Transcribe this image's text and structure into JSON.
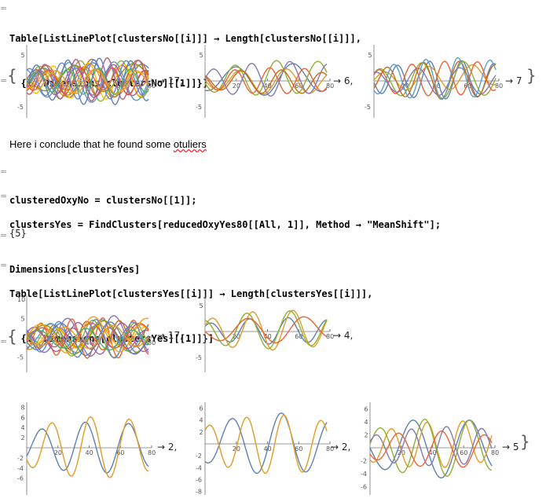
{
  "cells": {
    "in1": {
      "line1": "Table[ListLinePlot[clustersNo[[i]]] → Length[clustersNo[[i]]],",
      "line2": "  {i, Dimensions[clustersNo][[1]]}]"
    },
    "out1": {
      "labels": [
        "→ 17,",
        "→ 6,",
        "→ 7"
      ]
    },
    "note": {
      "prefix": "Here i conclude that he found some ",
      "misspelled": "otuliers"
    },
    "in2": {
      "line1": "clusteredOxyNo = clustersNo[[1]];"
    },
    "in3": {
      "line1": "clustersYes = FindClusters[reducedOxyYes80[[All, 1]], Method → \"MeanShift\"];",
      "line2": "Dimensions[clustersYes]"
    },
    "out3": {
      "value": "{5}"
    },
    "in4": {
      "line1": "Table[ListLinePlot[clustersYes[[i]]] → Length[clustersYes[[i]]],",
      "line2": "  {i, Dimensions[clustersYes][[1]]}]"
    },
    "out4": {
      "labels": [
        "→ 17,",
        "→ 4,",
        "→ 2,",
        "→ 2,",
        "→ 5"
      ]
    }
  },
  "plots": [
    {
      "id": "p1",
      "count": 17,
      "yticks": [
        "5",
        "-5"
      ],
      "xticks": [
        "20",
        "40",
        "60",
        "80"
      ]
    },
    {
      "id": "p2",
      "count": 6,
      "yticks": [
        "5",
        "-5"
      ],
      "xticks": [
        "20",
        "40",
        "60",
        "80"
      ]
    },
    {
      "id": "p3",
      "count": 7,
      "yticks": [
        "5",
        "-5"
      ],
      "xticks": [
        "20",
        "40",
        "60",
        "80"
      ]
    },
    {
      "id": "p4",
      "count": 17,
      "yticks": [
        "10",
        "5",
        "-5"
      ],
      "xticks": [
        "20",
        "40",
        "60",
        "80"
      ]
    },
    {
      "id": "p5",
      "count": 4,
      "yticks": [
        "5",
        "-5"
      ],
      "xticks": [
        "20",
        "40",
        "60",
        "80"
      ]
    },
    {
      "id": "p6",
      "count": 2,
      "yticks": [
        "8",
        "6",
        "4",
        "2",
        "-2",
        "-4",
        "-6"
      ],
      "xticks": [
        "20",
        "40",
        "60",
        "80"
      ]
    },
    {
      "id": "p7",
      "count": 2,
      "yticks": [
        "6",
        "4",
        "2",
        "-2",
        "-4",
        "-6",
        "-8"
      ],
      "xticks": [
        "20",
        "40",
        "60",
        "80"
      ]
    },
    {
      "id": "p8",
      "count": 5,
      "yticks": [
        "6",
        "4",
        "2",
        "-2",
        "-4",
        "-6"
      ],
      "xticks": [
        "20",
        "40",
        "60",
        "80"
      ]
    }
  ],
  "colors": {
    "series": [
      "#5e81b5",
      "#e19c24",
      "#8fb032",
      "#eb6235",
      "#8778b3",
      "#c56e1a",
      "#5d9ec7",
      "#ffbf00",
      "#a5609d",
      "#929600",
      "#e95536",
      "#6685d9",
      "#f89f13",
      "#bc5b80",
      "#47b66d"
    ],
    "bracket": "#999999"
  }
}
